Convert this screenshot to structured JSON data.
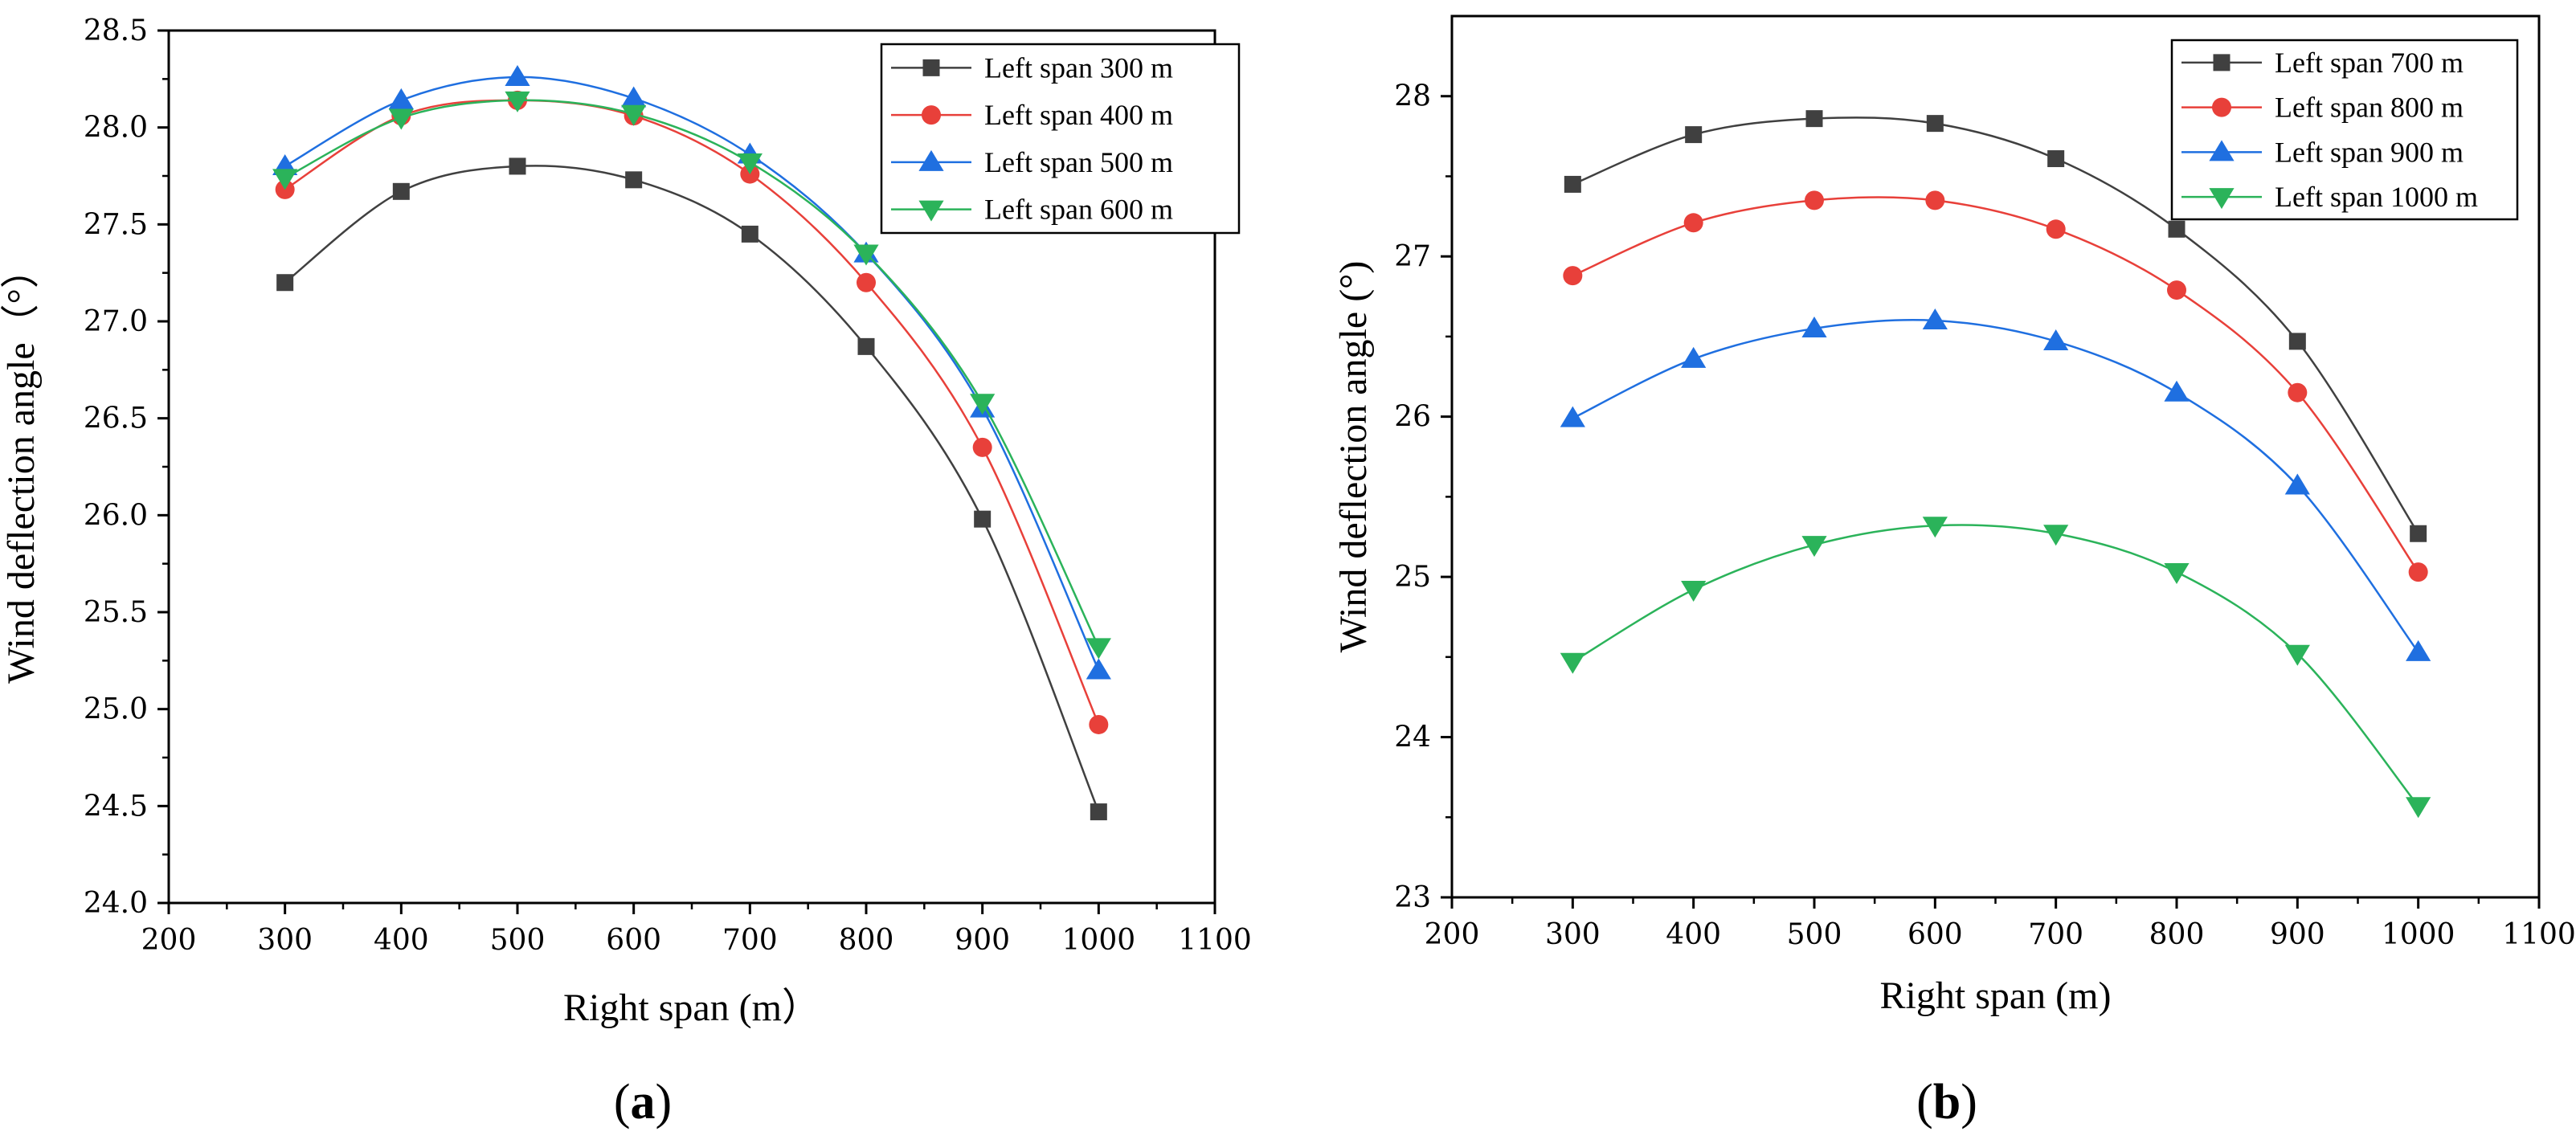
{
  "colors": {
    "black_series": "#404040",
    "red_series": "#e8403a",
    "blue_series": "#1f6fe0",
    "green_series": "#2bb35a"
  },
  "chart_data": [
    {
      "type": "line",
      "panel_label": "a",
      "xlabel": "Right span (m）",
      "ylabel": "Wind deflection angle（°）",
      "xlim": [
        200,
        1100
      ],
      "ylim": [
        24.0,
        28.5
      ],
      "xticks": [
        200,
        300,
        400,
        500,
        600,
        700,
        800,
        900,
        1000,
        1100
      ],
      "yticks": [
        "24.0",
        "24.5",
        "25.0",
        "25.5",
        "26.0",
        "26.5",
        "27.0",
        "27.5",
        "28.0",
        "28.5"
      ],
      "legend_position": "top-right",
      "x": [
        300,
        400,
        500,
        600,
        700,
        800,
        900,
        1000
      ],
      "series": [
        {
          "name": "Left span 300 m",
          "marker": "square",
          "color": "#404040",
          "values": [
            27.2,
            27.67,
            27.8,
            27.73,
            27.45,
            26.87,
            25.98,
            24.47
          ]
        },
        {
          "name": "Left span 400 m",
          "marker": "circle",
          "color": "#e8403a",
          "values": [
            27.68,
            28.06,
            28.14,
            28.06,
            27.76,
            27.2,
            26.35,
            24.92
          ]
        },
        {
          "name": "Left span 500 m",
          "marker": "triangle-up",
          "color": "#1f6fe0",
          "values": [
            27.8,
            28.14,
            28.26,
            28.15,
            27.86,
            27.35,
            26.55,
            25.2
          ]
        },
        {
          "name": "Left span 600 m",
          "marker": "triangle-down",
          "color": "#2bb35a",
          "values": [
            27.74,
            28.05,
            28.14,
            28.07,
            27.82,
            27.35,
            26.58,
            25.32
          ]
        }
      ]
    },
    {
      "type": "line",
      "panel_label": "b",
      "xlabel": "Right span (m)",
      "ylabel": "Wind deflection angle (°)",
      "xlim": [
        200,
        1100
      ],
      "ylim": [
        23,
        28.5
      ],
      "xticks": [
        200,
        300,
        400,
        500,
        600,
        700,
        800,
        900,
        1000,
        1100
      ],
      "yticks": [
        "23",
        "24",
        "25",
        "26",
        "27",
        "28"
      ],
      "legend_position": "top-right",
      "x": [
        300,
        400,
        500,
        600,
        700,
        800,
        900,
        1000
      ],
      "series": [
        {
          "name": "Left span 700 m",
          "marker": "square",
          "color": "#404040",
          "values": [
            27.45,
            27.76,
            27.86,
            27.83,
            27.61,
            27.17,
            26.47,
            25.27
          ]
        },
        {
          "name": "Left span 800 m",
          "marker": "circle",
          "color": "#e8403a",
          "values": [
            26.88,
            27.21,
            27.35,
            27.35,
            27.17,
            26.79,
            26.15,
            25.03
          ]
        },
        {
          "name": "Left span 900 m",
          "marker": "triangle-up",
          "color": "#1f6fe0",
          "values": [
            25.99,
            26.36,
            26.55,
            26.6,
            26.47,
            26.15,
            25.57,
            24.53
          ]
        },
        {
          "name": "Left span 1000 m",
          "marker": "triangle-down",
          "color": "#2bb35a",
          "values": [
            24.47,
            24.92,
            25.2,
            25.32,
            25.27,
            25.03,
            24.52,
            23.57
          ]
        }
      ]
    }
  ]
}
